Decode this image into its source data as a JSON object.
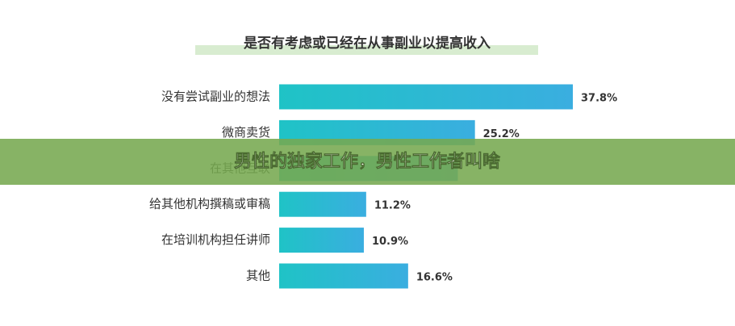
{
  "chart_data": {
    "type": "bar",
    "orientation": "horizontal",
    "title": "是否有考虑或已经在从事副业以提高收入",
    "categories": [
      "没有尝试副业的想法",
      "微商卖货",
      "在其他互联",
      "给其他机构撰稿或审稿",
      "在培训机构担任讲师",
      "其他"
    ],
    "values": [
      37.8,
      25.2,
      23,
      11.2,
      10.9,
      16.6
    ],
    "value_labels": [
      "37.8%",
      "25.2%",
      null,
      "11.2%",
      "10.9%",
      "16.6%"
    ],
    "color": "#27b6d4"
  },
  "banner": "男性的独家工作，男性工作者叫啥"
}
